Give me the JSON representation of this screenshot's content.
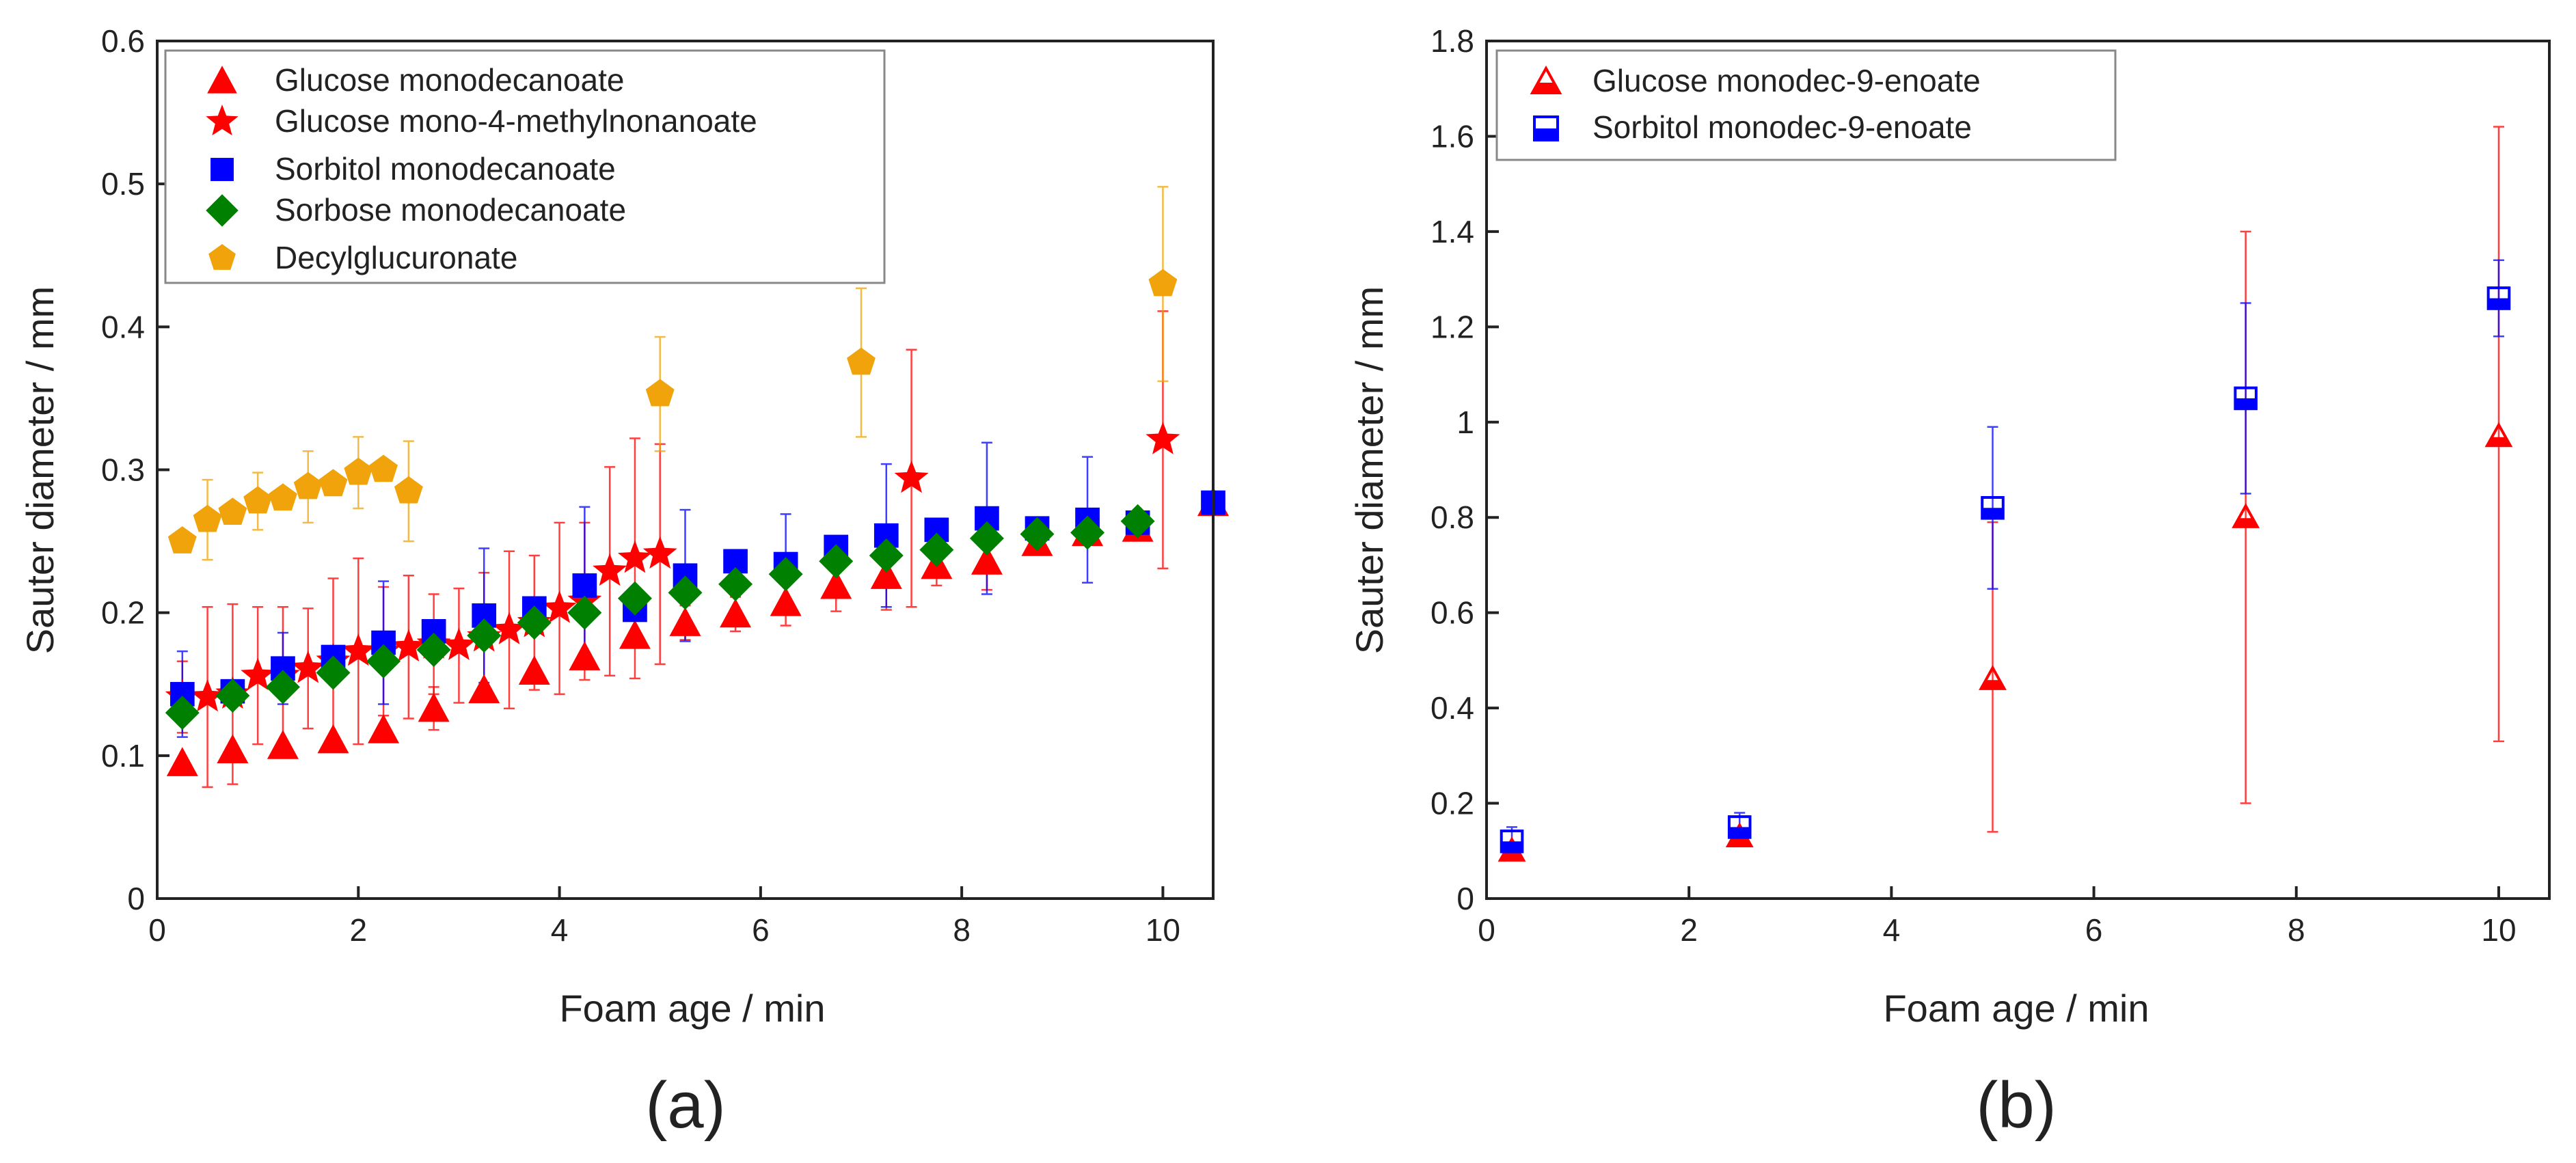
{
  "chart_data": [
    {
      "type": "scatter",
      "panel_label": "(a)",
      "xlabel": "Foam age / min",
      "ylabel": "Sauter diameter / mm",
      "xlim": [
        0,
        10.5
      ],
      "ylim": [
        0,
        0.6
      ],
      "xticks": [
        0,
        2,
        4,
        6,
        8,
        10
      ],
      "xtick_labels": [
        "0",
        "2",
        "4",
        "6",
        "8",
        "10"
      ],
      "yticks": [
        0,
        0.1,
        0.2,
        0.3,
        0.4,
        0.5,
        0.6
      ],
      "ytick_labels": [
        "0",
        "0.1",
        "0.2",
        "0.3",
        "0.4",
        "0.5",
        "0.6"
      ],
      "legend_position": "top-left",
      "series": [
        {
          "name": "Glucose monodecanoate",
          "marker": "triangle",
          "color": "#ff0000",
          "x": [
            0.25,
            0.75,
            1.25,
            1.75,
            2.25,
            2.75,
            3.25,
            3.75,
            4.25,
            4.75,
            5.25,
            5.75,
            6.25,
            6.75,
            7.25,
            7.75,
            8.25,
            8.75,
            9.25,
            9.75,
            10.5
          ],
          "y": [
            0.095,
            0.104,
            0.107,
            0.111,
            0.118,
            0.133,
            0.146,
            0.159,
            0.169,
            0.184,
            0.193,
            0.199,
            0.207,
            0.219,
            0.226,
            0.233,
            0.236,
            0.249,
            0.256,
            0.259,
            0.277
          ],
          "err": [
            0,
            0,
            0,
            0,
            0,
            0.015,
            0,
            0,
            0,
            0,
            0.012,
            0.012,
            0.016,
            0.018,
            0.024,
            0.014,
            0.02,
            0,
            0,
            0,
            0
          ]
        },
        {
          "name": "Glucose mono-4-methylnonanoate",
          "marker": "star",
          "color": "#ff0000",
          "x": [
            0.25,
            0.5,
            0.75,
            1.0,
            1.25,
            1.5,
            1.75,
            2.0,
            2.25,
            2.5,
            2.75,
            3.0,
            3.25,
            3.5,
            3.75,
            4.0,
            4.25,
            4.5,
            4.75,
            5.0,
            7.5,
            10.0
          ],
          "y": [
            0.141,
            0.141,
            0.143,
            0.156,
            0.156,
            0.161,
            0.166,
            0.173,
            0.173,
            0.176,
            0.178,
            0.177,
            0.183,
            0.188,
            0.193,
            0.203,
            0.208,
            0.229,
            0.238,
            0.241,
            0.294,
            0.321
          ],
          "err": [
            0.025,
            0.063,
            0.063,
            0.048,
            0.048,
            0.042,
            0.058,
            0.065,
            0.045,
            0.05,
            0.035,
            0.04,
            0.045,
            0.055,
            0.047,
            0.06,
            0.055,
            0.073,
            0.084,
            0.077,
            0.09,
            0.09
          ]
        },
        {
          "name": "Sorbitol monodecanoate",
          "marker": "square",
          "color": "#0000ff",
          "x": [
            0.25,
            0.75,
            1.25,
            1.75,
            2.25,
            2.75,
            3.25,
            3.75,
            4.25,
            4.75,
            5.25,
            5.75,
            6.25,
            6.75,
            7.25,
            7.75,
            8.25,
            8.75,
            9.25,
            9.75,
            10.5
          ],
          "y": [
            0.143,
            0.145,
            0.161,
            0.169,
            0.179,
            0.187,
            0.198,
            0.203,
            0.219,
            0.202,
            0.226,
            0.236,
            0.234,
            0.246,
            0.254,
            0.258,
            0.266,
            0.259,
            0.265,
            0.263,
            0.277
          ],
          "err": [
            0.03,
            0,
            0.025,
            0,
            0.043,
            0,
            0.047,
            0,
            0.055,
            0,
            0.046,
            0,
            0.035,
            0,
            0.05,
            0,
            0.053,
            0,
            0.044,
            0,
            0
          ]
        },
        {
          "name": "Sorbose monodecanoate",
          "marker": "diamond",
          "color": "#008000",
          "x": [
            0.25,
            0.75,
            1.25,
            1.75,
            2.25,
            2.75,
            3.25,
            3.75,
            4.25,
            4.75,
            5.25,
            5.75,
            6.25,
            6.75,
            7.25,
            7.75,
            8.25,
            8.75,
            9.25,
            9.75
          ],
          "y": [
            0.13,
            0.142,
            0.148,
            0.158,
            0.166,
            0.174,
            0.184,
            0.193,
            0.2,
            0.21,
            0.214,
            0.22,
            0.227,
            0.236,
            0.24,
            0.244,
            0.252,
            0.255,
            0.256,
            0.264
          ],
          "err": [
            0,
            0,
            0,
            0,
            0,
            0,
            0,
            0,
            0,
            0,
            0,
            0,
            0,
            0,
            0,
            0,
            0,
            0,
            0,
            0
          ]
        },
        {
          "name": "Decylglucuronate",
          "marker": "pentagon",
          "color": "#f0a30a",
          "x": [
            0.25,
            0.5,
            0.75,
            1.0,
            1.25,
            1.5,
            1.75,
            2.0,
            2.25,
            2.5,
            5.0,
            7.0,
            10.0
          ],
          "y": [
            0.25,
            0.265,
            0.27,
            0.278,
            0.28,
            0.288,
            0.29,
            0.298,
            0.3,
            0.285,
            0.353,
            0.375,
            0.43
          ],
          "err": [
            0,
            0.028,
            0,
            0.02,
            0,
            0.025,
            0,
            0.025,
            0,
            0.035,
            0.04,
            0.052,
            0.068
          ]
        }
      ]
    },
    {
      "type": "scatter",
      "panel_label": "(b)",
      "xlabel": "Foam age / min",
      "ylabel": "Sauter diameter / mm",
      "xlim": [
        0,
        10.5
      ],
      "ylim": [
        0,
        1.8
      ],
      "xticks": [
        0,
        2,
        4,
        6,
        8,
        10
      ],
      "xtick_labels": [
        "0",
        "2",
        "4",
        "6",
        "8",
        "10"
      ],
      "yticks": [
        0,
        0.2,
        0.4,
        0.6,
        0.8,
        1.0,
        1.2,
        1.4,
        1.6,
        1.8
      ],
      "ytick_labels": [
        "0",
        "0.2",
        "0.4",
        "0.6",
        "0.8",
        "1",
        "1.2",
        "1.4",
        "1.6",
        "1.8"
      ],
      "legend_position": "top-left",
      "series": [
        {
          "name": "Glucose monodec-9-enoate",
          "marker": "half-triangle",
          "color": "#ff0000",
          "x": [
            0.25,
            2.5,
            5.0,
            7.5,
            10.0
          ],
          "y": [
            0.1,
            0.13,
            0.46,
            0.8,
            0.97
          ],
          "err_low": [
            0.01,
            0.01,
            0.32,
            0.6,
            0.64
          ],
          "err_high": [
            0.01,
            0.01,
            0.33,
            0.6,
            0.65
          ]
        },
        {
          "name": "Sorbitol monodec-9-enoate",
          "marker": "half-square",
          "color": "#0000ff",
          "x": [
            0.25,
            2.5,
            5.0,
            7.5,
            10.0
          ],
          "y": [
            0.12,
            0.15,
            0.82,
            1.05,
            1.26
          ],
          "err_low": [
            0.03,
            0.03,
            0.17,
            0.2,
            0.08
          ],
          "err_high": [
            0.03,
            0.03,
            0.17,
            0.2,
            0.08
          ]
        }
      ]
    }
  ]
}
